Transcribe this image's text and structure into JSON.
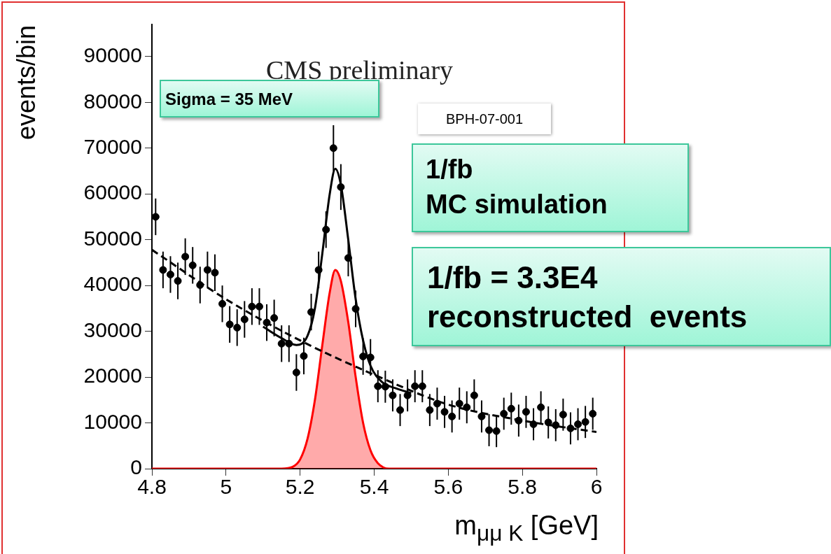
{
  "chart_data": {
    "type": "scatter",
    "xlabel": "m$_{μμ K}$ [GeV]",
    "ylabel": "events/bin",
    "xlim": [
      4.8,
      6
    ],
    "ylim": [
      0,
      97000
    ],
    "xticks": [
      {
        "value": 4.8,
        "label": "4.8"
      },
      {
        "value": 5,
        "label": "5"
      },
      {
        "value": 5.2,
        "label": "5.2"
      },
      {
        "value": 5.4,
        "label": "5.4"
      },
      {
        "value": 5.6,
        "label": "5.6"
      },
      {
        "value": 5.8,
        "label": "5.8"
      },
      {
        "value": 6,
        "label": "6"
      }
    ],
    "yticks": [
      0,
      10000,
      20000,
      30000,
      40000,
      50000,
      60000,
      70000,
      80000,
      90000
    ],
    "annotations": [
      "CMS preliminary",
      "Sigma = 35 MeV",
      "BPH-07-001",
      "1/fb\nMC simulation",
      "1/fb = 3.3E4\nreconstructed  events"
    ],
    "series": [
      {
        "type": "area",
        "color": "#ff0000",
        "x": [
          4.8,
          5.15,
          5.18,
          5.2,
          5.22,
          5.24,
          5.26,
          5.28,
          5.295,
          5.31,
          5.33,
          5.35,
          5.37,
          5.39,
          5.41,
          5.44,
          6
        ],
        "values": [
          0,
          0,
          400,
          2000,
          6500,
          15000,
          27000,
          38500,
          43400,
          41000,
          32000,
          20000,
          10000,
          4000,
          1200,
          0,
          0
        ]
      },
      {
        "type": "line",
        "line_style": "dashed",
        "marker": "none",
        "color": "#000000",
        "x": [
          4.8,
          5.0,
          5.2,
          5.4,
          5.6,
          5.8,
          6.0
        ],
        "values": [
          47800,
          37000,
          28000,
          20500,
          14000,
          10500,
          8000
        ]
      },
      {
        "type": "line",
        "line_style": "solid",
        "marker": "none",
        "color": "#000000",
        "x": [
          5.1,
          5.15,
          5.19,
          5.22,
          5.24,
          5.26,
          5.28,
          5.295,
          5.31,
          5.33,
          5.35,
          5.37,
          5.39,
          5.42,
          5.46,
          5.5
        ],
        "values": [
          31000,
          28500,
          27000,
          29000,
          35000,
          47000,
          60000,
          65500,
          62000,
          50000,
          37000,
          28000,
          22500,
          19000,
          17500,
          16500
        ]
      },
      {
        "type": "scatter",
        "marker": "circle",
        "color": "#000000",
        "x": [
          4.81,
          4.83,
          4.85,
          4.87,
          4.89,
          4.91,
          4.93,
          4.95,
          4.97,
          4.99,
          5.01,
          5.03,
          5.05,
          5.07,
          5.09,
          5.11,
          5.13,
          5.15,
          5.17,
          5.19,
          5.21,
          5.23,
          5.25,
          5.27,
          5.29,
          5.31,
          5.33,
          5.35,
          5.37,
          5.39,
          5.41,
          5.43,
          5.45,
          5.47,
          5.49,
          5.51,
          5.53,
          5.55,
          5.57,
          5.59,
          5.61,
          5.63,
          5.65,
          5.67,
          5.69,
          5.71,
          5.73,
          5.75,
          5.77,
          5.79,
          5.81,
          5.83,
          5.85,
          5.87,
          5.89,
          5.91,
          5.93,
          5.95,
          5.97,
          5.99
        ],
        "values": [
          55000,
          43400,
          42400,
          41000,
          46300,
          44400,
          40100,
          43400,
          42800,
          36000,
          31500,
          30800,
          32600,
          35400,
          35400,
          31900,
          32900,
          27300,
          27300,
          21000,
          24600,
          34200,
          43400,
          52200,
          70000,
          61500,
          46000,
          34900,
          24500,
          24300,
          18000,
          17900,
          16000,
          12800,
          16000,
          18000,
          18000,
          12800,
          14200,
          12400,
          11400,
          14200,
          13400,
          16000,
          11400,
          8400,
          8200,
          12000,
          13100,
          10500,
          12400,
          9700,
          13400,
          10100,
          9500,
          11800,
          8800,
          9700,
          10200,
          12000
        ],
        "errors": [
          4000,
          4000,
          4000,
          4000,
          4000,
          4000,
          4000,
          4000,
          4000,
          4000,
          4000,
          4000,
          4000,
          4000,
          4000,
          4000,
          4000,
          4000,
          4000,
          4000,
          4000,
          4000,
          4000,
          4000,
          5000,
          5000,
          4000,
          4000,
          4000,
          4000,
          3500,
          3500,
          3500,
          3500,
          3500,
          3500,
          3500,
          3500,
          3500,
          3500,
          3500,
          3500,
          3500,
          3500,
          3500,
          3500,
          3500,
          3500,
          3500,
          3500,
          3500,
          3500,
          3500,
          3500,
          3500,
          3500,
          3500,
          3500,
          3500,
          3500
        ]
      }
    ]
  }
}
